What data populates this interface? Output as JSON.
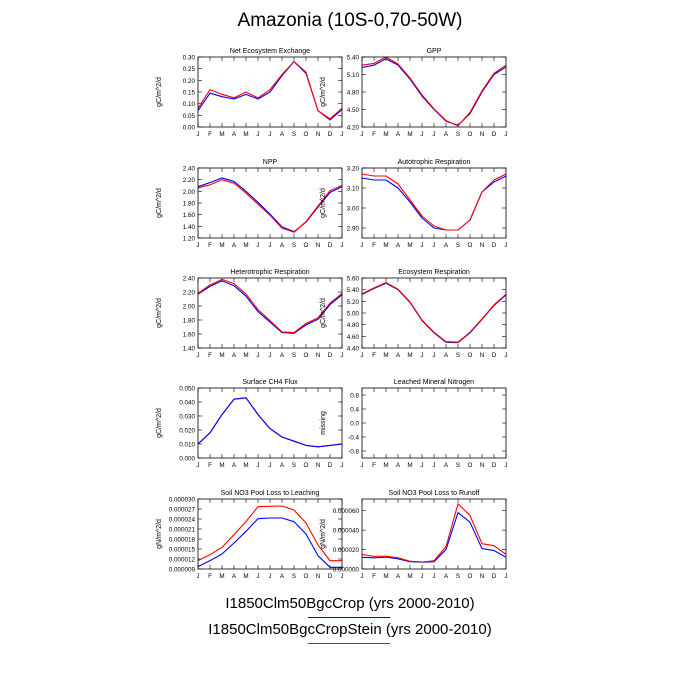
{
  "figure": {
    "title": "Amazonia (10S-0,70-50W)",
    "legend": [
      {
        "label": "I1850Clm50BgcCrop (yrs 2000-2010)",
        "color": "#0000ff"
      },
      {
        "label": "I1850Clm50BgcCropStein (yrs 2000-2010)",
        "color": "#ff0000"
      }
    ],
    "colors": {
      "blue": "#0000ff",
      "red": "#ff0000"
    }
  },
  "chart_data": [
    {
      "type": "line",
      "title": "Net Ecosystem Exchange",
      "ylabel": "gC/m^2/d",
      "categories": [
        "J",
        "F",
        "M",
        "A",
        "M",
        "J",
        "J",
        "A",
        "S",
        "O",
        "N",
        "D",
        "J"
      ],
      "ylim": [
        0.0,
        0.3
      ],
      "yticks": [
        "0.00",
        "0.05",
        "0.10",
        "0.15",
        "0.20",
        "0.25",
        "0.30"
      ],
      "series": [
        {
          "color": "#0000ff",
          "values": [
            0.07,
            0.145,
            0.13,
            0.12,
            0.14,
            0.12,
            0.15,
            0.22,
            0.28,
            0.23,
            0.07,
            0.03,
            0.075
          ]
        },
        {
          "color": "#ff0000",
          "values": [
            0.08,
            0.16,
            0.14,
            0.125,
            0.15,
            0.125,
            0.16,
            0.225,
            0.28,
            0.235,
            0.07,
            0.035,
            0.08
          ]
        }
      ]
    },
    {
      "type": "line",
      "title": "GPP",
      "ylabel": "gC/m^2/d",
      "categories": [
        "J",
        "F",
        "M",
        "A",
        "M",
        "J",
        "J",
        "A",
        "S",
        "O",
        "N",
        "D",
        "J"
      ],
      "ylim": [
        4.2,
        5.4
      ],
      "yticks": [
        "4.20",
        "4.50",
        "4.80",
        "5.10",
        "5.40"
      ],
      "series": [
        {
          "color": "#0000ff",
          "values": [
            5.22,
            5.26,
            5.37,
            5.26,
            5.02,
            4.73,
            4.5,
            4.3,
            4.23,
            4.43,
            4.8,
            5.1,
            5.23
          ]
        },
        {
          "color": "#ff0000",
          "values": [
            5.26,
            5.29,
            5.4,
            5.28,
            5.04,
            4.75,
            4.51,
            4.31,
            4.22,
            4.45,
            4.82,
            5.12,
            5.26
          ]
        }
      ]
    },
    {
      "type": "line",
      "title": "NPP",
      "ylabel": "gC/m^2/d",
      "categories": [
        "J",
        "F",
        "M",
        "A",
        "M",
        "J",
        "J",
        "A",
        "S",
        "O",
        "N",
        "D",
        "J"
      ],
      "ylim": [
        1.2,
        2.4
      ],
      "yticks": [
        "1.20",
        "1.40",
        "1.60",
        "1.80",
        "2.00",
        "2.20",
        "2.40"
      ],
      "series": [
        {
          "color": "#0000ff",
          "values": [
            2.08,
            2.15,
            2.23,
            2.17,
            2.0,
            1.81,
            1.61,
            1.39,
            1.31,
            1.47,
            1.73,
            1.98,
            2.08
          ]
        },
        {
          "color": "#ff0000",
          "values": [
            2.06,
            2.11,
            2.2,
            2.14,
            1.97,
            1.78,
            1.59,
            1.37,
            1.3,
            1.48,
            1.75,
            2.01,
            2.1
          ]
        }
      ]
    },
    {
      "type": "line",
      "title": "Autotrophic Respiration",
      "ylabel": "gC/m^2/d",
      "categories": [
        "J",
        "F",
        "M",
        "A",
        "M",
        "J",
        "J",
        "A",
        "S",
        "O",
        "N",
        "D",
        "J"
      ],
      "ylim": [
        2.85,
        3.2
      ],
      "yticks": [
        "2.90",
        "3.00",
        "3.10",
        "3.20"
      ],
      "series": [
        {
          "color": "#0000ff",
          "values": [
            3.15,
            3.14,
            3.14,
            3.1,
            3.03,
            2.95,
            2.9,
            2.89,
            2.89,
            2.94,
            3.08,
            3.13,
            3.16
          ]
        },
        {
          "color": "#ff0000",
          "values": [
            3.17,
            3.16,
            3.16,
            3.12,
            3.04,
            2.96,
            2.91,
            2.89,
            2.89,
            2.94,
            3.08,
            3.14,
            3.17
          ]
        }
      ]
    },
    {
      "type": "line",
      "title": "Heterotrophic Respiration",
      "ylabel": "gC/m^2/d",
      "categories": [
        "J",
        "F",
        "M",
        "A",
        "M",
        "J",
        "J",
        "A",
        "S",
        "O",
        "N",
        "D",
        "J"
      ],
      "ylim": [
        1.4,
        2.4
      ],
      "yticks": [
        "1.40",
        "1.60",
        "1.80",
        "2.00",
        "2.20",
        "2.40"
      ],
      "series": [
        {
          "color": "#0000ff",
          "values": [
            2.17,
            2.28,
            2.36,
            2.29,
            2.14,
            1.92,
            1.77,
            1.62,
            1.61,
            1.73,
            1.81,
            2.02,
            2.16
          ]
        },
        {
          "color": "#ff0000",
          "values": [
            2.18,
            2.3,
            2.38,
            2.32,
            2.17,
            1.95,
            1.79,
            1.63,
            1.62,
            1.75,
            1.83,
            2.04,
            2.18
          ]
        }
      ]
    },
    {
      "type": "line",
      "title": "Ecosystem Respiration",
      "ylabel": "gC/m^2/d",
      "categories": [
        "J",
        "F",
        "M",
        "A",
        "M",
        "J",
        "J",
        "A",
        "S",
        "O",
        "N",
        "D",
        "J"
      ],
      "ylim": [
        4.4,
        5.6
      ],
      "yticks": [
        "4.40",
        "4.60",
        "4.80",
        "5.00",
        "5.20",
        "5.40",
        "5.60"
      ],
      "series": [
        {
          "color": "#0000ff",
          "values": [
            5.32,
            5.42,
            5.51,
            5.4,
            5.18,
            4.87,
            4.66,
            4.5,
            4.49,
            4.66,
            4.89,
            5.13,
            5.31
          ]
        },
        {
          "color": "#ff0000",
          "values": [
            5.33,
            5.43,
            5.52,
            5.41,
            5.19,
            4.88,
            4.67,
            4.51,
            4.5,
            4.67,
            4.9,
            5.14,
            5.32
          ]
        }
      ]
    },
    {
      "type": "line",
      "title": "Surface CH4 Flux",
      "ylabel": "gC/m^2/d",
      "categories": [
        "J",
        "F",
        "M",
        "A",
        "M",
        "J",
        "J",
        "A",
        "S",
        "O",
        "N",
        "D",
        "J"
      ],
      "ylim": [
        0.0,
        0.05
      ],
      "yticks": [
        "0.000",
        "0.010",
        "0.020",
        "0.030",
        "0.040",
        "0.050"
      ],
      "series": [
        {
          "color": "#ff0000",
          "values": [
            0.01,
            0.018,
            0.031,
            0.042,
            0.043,
            0.031,
            0.021,
            0.015,
            0.012,
            0.009,
            0.008,
            0.009,
            0.01
          ]
        },
        {
          "color": "#0000ff",
          "values": [
            0.01,
            0.018,
            0.031,
            0.042,
            0.043,
            0.031,
            0.021,
            0.015,
            0.012,
            0.009,
            0.008,
            0.009,
            0.01
          ]
        }
      ]
    },
    {
      "type": "line",
      "title": "Leached Mineral Nitrogen",
      "ylabel": "missing",
      "categories": [
        "J",
        "F",
        "M",
        "A",
        "M",
        "J",
        "J",
        "A",
        "S",
        "O",
        "N",
        "D",
        "J"
      ],
      "ylim": [
        -1.0,
        1.0
      ],
      "yticks": [
        "-0.8",
        "-0.4",
        "0.0",
        "0.4",
        "0.8"
      ],
      "series": []
    },
    {
      "type": "line",
      "title": "Soil NO3 Pool Loss to Leaching",
      "ylabel": "gN/m^2/d",
      "categories": [
        "J",
        "F",
        "M",
        "A",
        "M",
        "J",
        "J",
        "A",
        "S",
        "O",
        "N",
        "D",
        "J"
      ],
      "ylim": [
        9e-06,
        3e-05
      ],
      "yticks": [
        "0.000009",
        "0.000012",
        "0.000015",
        "0.000018",
        "0.000021",
        "0.000024",
        "0.000027",
        "0.000030"
      ],
      "series": [
        {
          "color": "#0000ff",
          "values": [
            9.7e-06,
            1.15e-05,
            1.35e-05,
            1.68e-05,
            2.03e-05,
            2.41e-05,
            2.43e-05,
            2.43e-05,
            2.32e-05,
            1.95e-05,
            1.3e-05,
            9.5e-06,
            9.5e-06
          ]
        },
        {
          "color": "#ff0000",
          "values": [
            1.15e-05,
            1.33e-05,
            1.55e-05,
            1.93e-05,
            2.32e-05,
            2.77e-05,
            2.78e-05,
            2.79e-05,
            2.67e-05,
            2.28e-05,
            1.62e-05,
            1.15e-05,
            1.15e-05
          ]
        }
      ]
    },
    {
      "type": "line",
      "title": "Soil NO3 Pool Loss to Runoff",
      "ylabel": "gN/m^2/d",
      "categories": [
        "J",
        "F",
        "M",
        "A",
        "M",
        "J",
        "J",
        "A",
        "S",
        "O",
        "N",
        "D",
        "J"
      ],
      "ylim": [
        0.0,
        7.2e-05
      ],
      "yticks": [
        "0.000000",
        "0.000020",
        "0.000040",
        "0.000060"
      ],
      "series": [
        {
          "color": "#0000ff",
          "values": [
            1.2e-05,
            1.15e-05,
            1.22e-05,
            1.05e-05,
            7.5e-06,
            7e-06,
            7.5e-06,
            2e-05,
            5.8e-05,
            4.8e-05,
            2.1e-05,
            1.9e-05,
            1.2e-05
          ]
        },
        {
          "color": "#ff0000",
          "values": [
            1.5e-05,
            1.3e-05,
            1.32e-05,
            1.15e-05,
            8e-06,
            7.2e-06,
            8.5e-06,
            2.3e-05,
            6.7e-05,
            5.5e-05,
            2.6e-05,
            2.4e-05,
            1.5e-05
          ]
        }
      ]
    }
  ]
}
